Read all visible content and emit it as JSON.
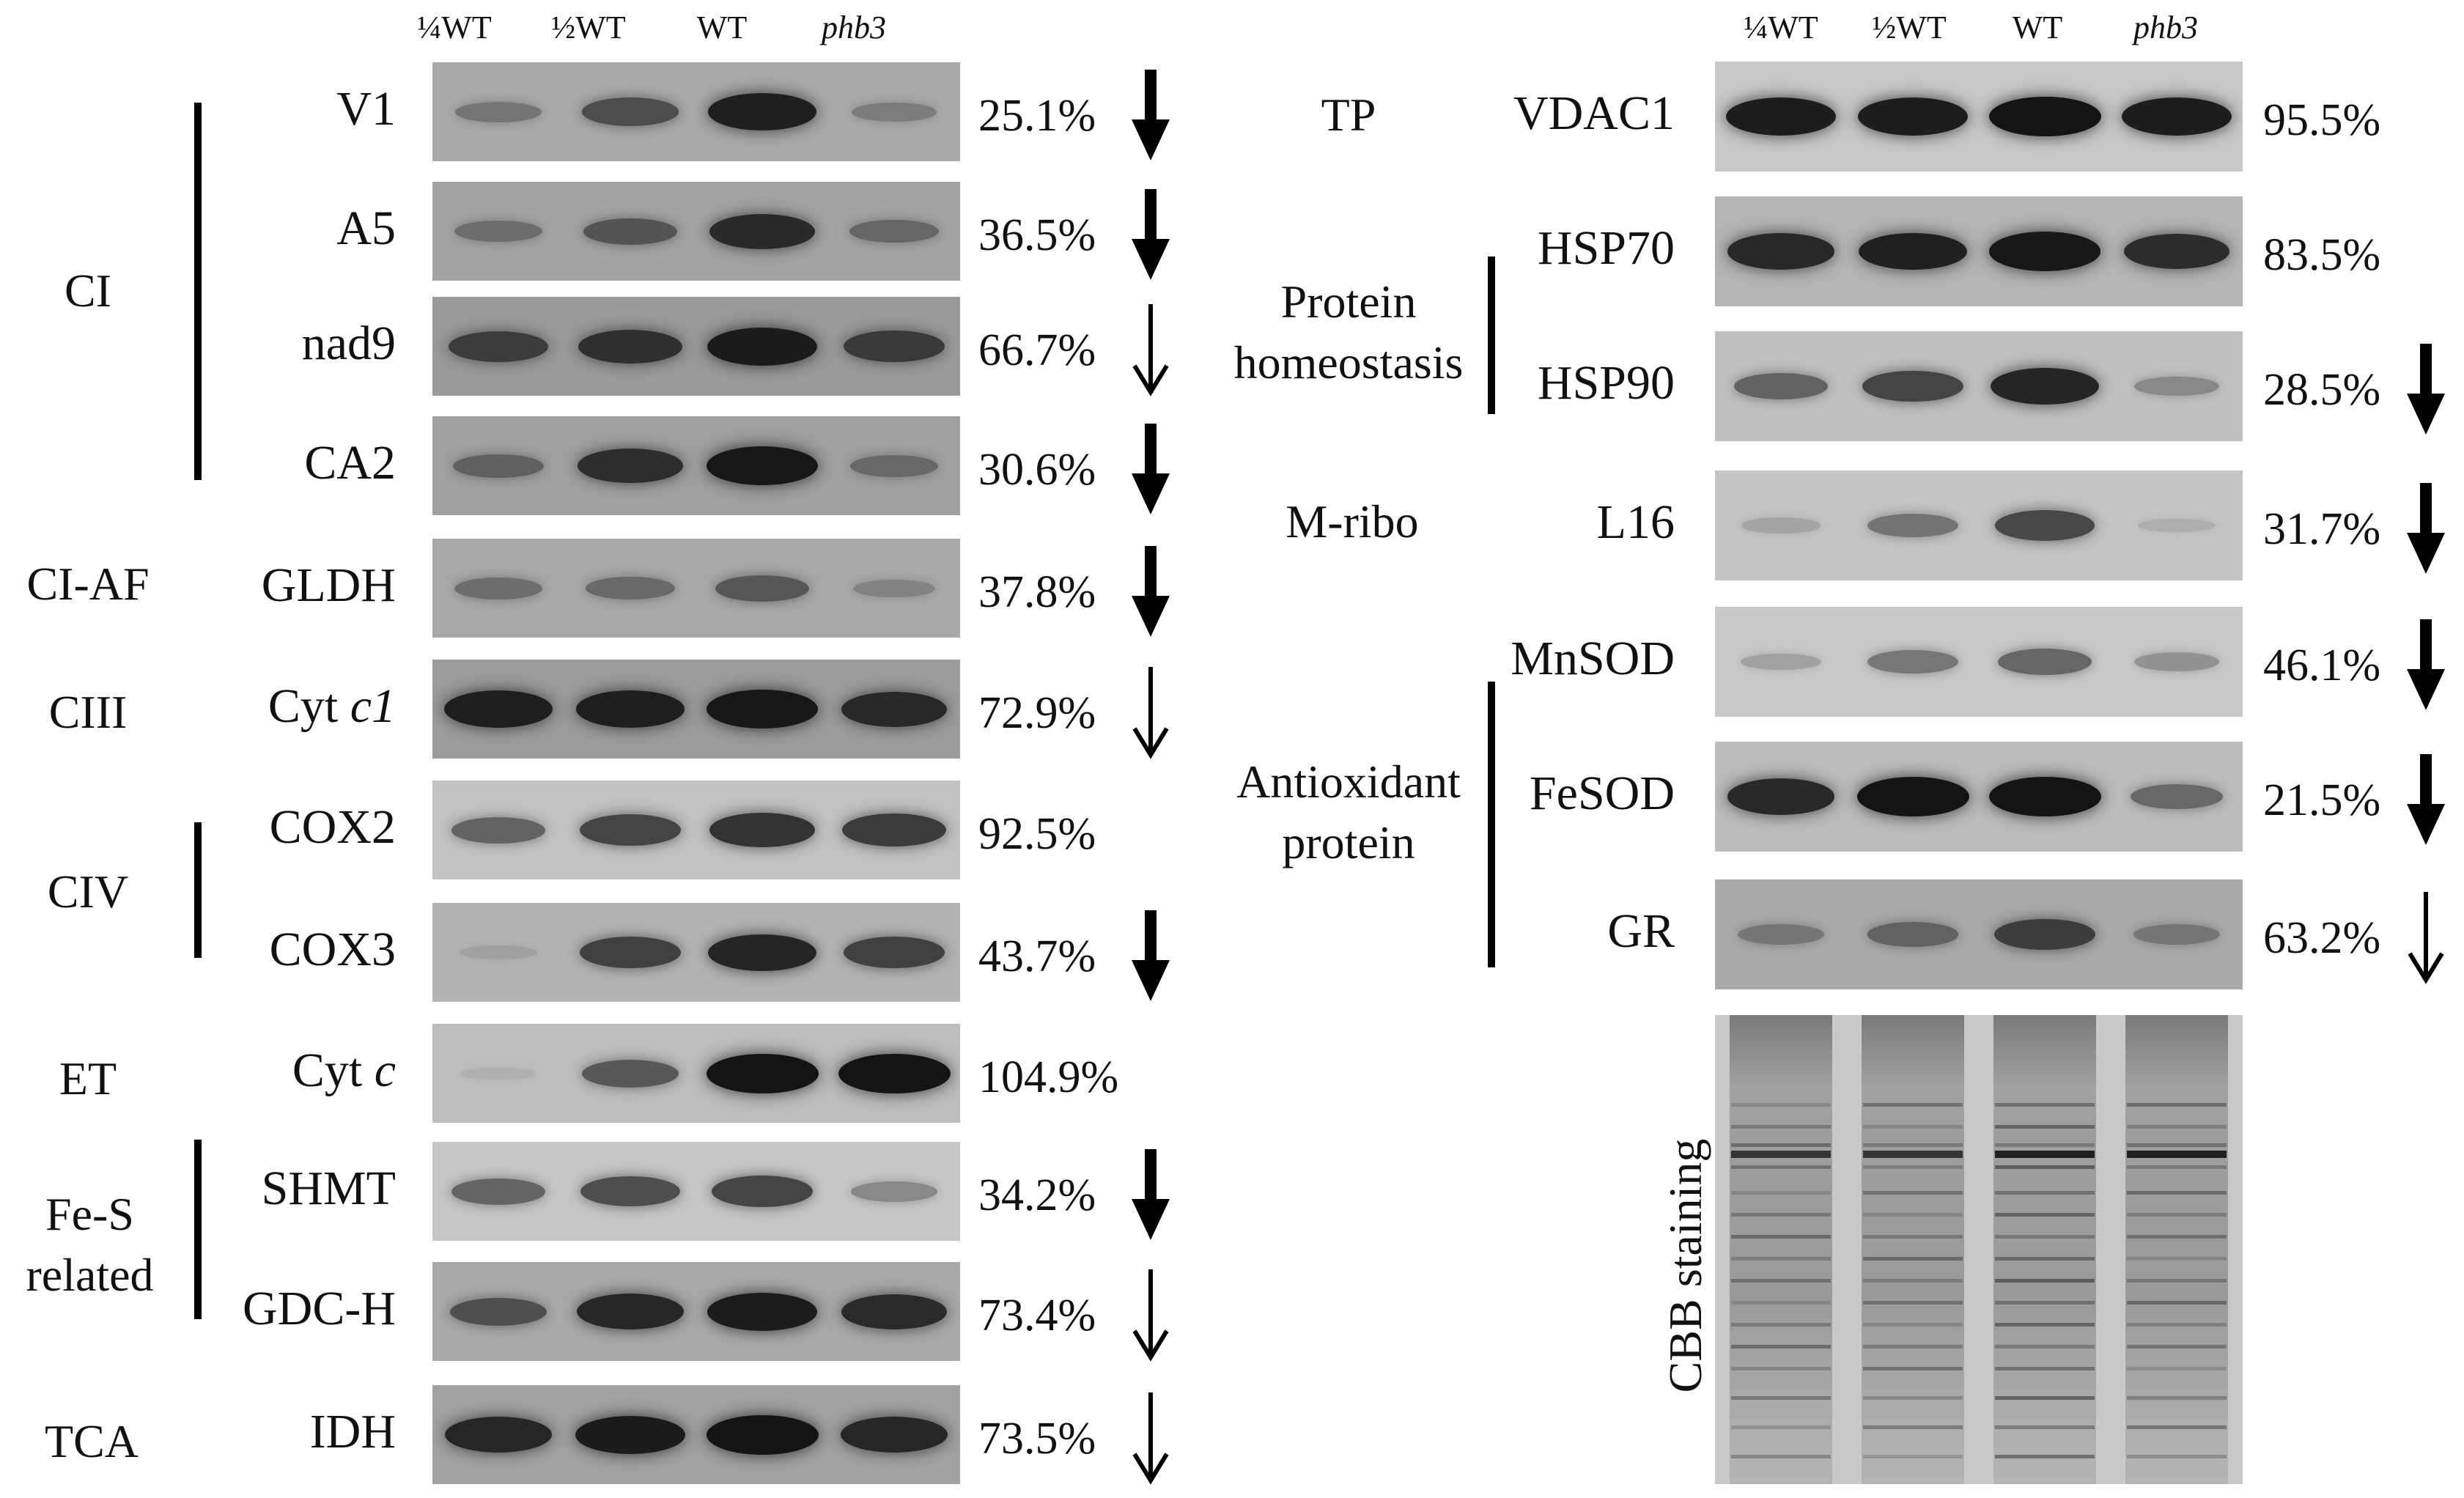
{
  "left_panel": {
    "lane_headers": [
      "¼WT",
      "½WT",
      "WT",
      "phb3"
    ],
    "rows": [
      {
        "protein": "V1",
        "percent": "25.1%",
        "arrow": "bold",
        "bands": [
          0.35,
          0.62,
          0.92,
          0.3
        ],
        "bg": "#a9a9a9"
      },
      {
        "protein": "A5",
        "percent": "36.5%",
        "arrow": "bold",
        "bands": [
          0.38,
          0.55,
          0.85,
          0.42
        ],
        "bg": "#a3a3a3"
      },
      {
        "protein": "nad9",
        "percent": "66.7%",
        "arrow": "thin",
        "bands": [
          0.7,
          0.8,
          0.95,
          0.72
        ],
        "bg": "#9a9a9a"
      },
      {
        "protein": "CA2",
        "percent": "30.6%",
        "arrow": "bold",
        "bands": [
          0.45,
          0.82,
          0.98,
          0.4
        ],
        "bg": "#a0a0a0"
      },
      {
        "protein": "GLDH",
        "percent": "37.8%",
        "arrow": "bold",
        "bands": [
          0.4,
          0.42,
          0.55,
          0.25
        ],
        "bg": "#a8a8a8"
      },
      {
        "protein": "Cyt c1",
        "protein_main": "Cyt ",
        "protein_ital": "c1",
        "percent": "72.9%",
        "arrow": "thin",
        "bands": [
          0.92,
          0.92,
          0.98,
          0.85
        ],
        "bg": "#9c9c9c"
      },
      {
        "protein": "COX2",
        "percent": "92.5%",
        "arrow": "none",
        "bands": [
          0.55,
          0.72,
          0.82,
          0.78
        ],
        "bg": "#c2c2c2"
      },
      {
        "protein": "COX3",
        "percent": "43.7%",
        "arrow": "bold",
        "bands": [
          0.12,
          0.72,
          0.9,
          0.72
        ],
        "bg": "#b4b4b4"
      },
      {
        "protein": "Cyt c",
        "protein_main": "Cyt ",
        "protein_ital": "c",
        "percent": "104.9%",
        "arrow": "none",
        "bands": [
          0.05,
          0.6,
          1.0,
          1.0
        ],
        "bg": "#bdbdbd"
      },
      {
        "protein": "SHMT",
        "percent": "34.2%",
        "arrow": "bold",
        "bands": [
          0.55,
          0.68,
          0.72,
          0.35
        ],
        "bg": "#c6c6c6"
      },
      {
        "protein": "GDC-H",
        "percent": "73.4%",
        "arrow": "thin",
        "bands": [
          0.6,
          0.88,
          0.95,
          0.85
        ],
        "bg": "#a9a9a9"
      },
      {
        "protein": "IDH",
        "percent": "73.5%",
        "arrow": "thin",
        "bands": [
          0.88,
          0.95,
          1.0,
          0.88
        ],
        "bg": "#a2a2a2"
      }
    ],
    "groups": [
      {
        "label": "CI"
      },
      {
        "label": "CI-AF"
      },
      {
        "label": "CIII"
      },
      {
        "label": "CIV"
      },
      {
        "label": "ET"
      },
      {
        "label": "Fe-S related",
        "line1": "Fe-S",
        "line2": "related"
      },
      {
        "label": "TCA"
      }
    ]
  },
  "right_panel": {
    "lane_headers": [
      "¼WT",
      "½WT",
      "WT",
      "phb3"
    ],
    "rows": [
      {
        "protein": "VDAC1",
        "percent": "95.5%",
        "arrow": "none",
        "bands": [
          0.95,
          0.95,
          1.0,
          0.95
        ],
        "bg": "#c8c8c8"
      },
      {
        "protein": "HSP70",
        "percent": "83.5%",
        "arrow": "none",
        "bands": [
          0.88,
          0.92,
          0.98,
          0.85
        ],
        "bg": "#b5b5b5"
      },
      {
        "protein": "HSP90",
        "percent": "28.5%",
        "arrow": "bold",
        "bands": [
          0.55,
          0.72,
          0.9,
          0.32
        ],
        "bg": "#c0c0c0"
      },
      {
        "protein": "L16",
        "percent": "31.7%",
        "arrow": "bold",
        "bands": [
          0.18,
          0.45,
          0.7,
          0.12
        ],
        "bg": "#c4c4c4"
      },
      {
        "protein": "MnSOD",
        "percent": "46.1%",
        "arrow": "bold",
        "bands": [
          0.22,
          0.45,
          0.55,
          0.3
        ],
        "bg": "#c9c9c9"
      },
      {
        "protein": "FeSOD",
        "percent": "21.5%",
        "arrow": "bold",
        "bands": [
          0.88,
          1.0,
          1.0,
          0.5
        ],
        "bg": "#bcbcbc"
      },
      {
        "protein": "GR",
        "percent": "63.2%",
        "arrow": "thin",
        "bands": [
          0.35,
          0.48,
          0.72,
          0.35
        ],
        "bg": "#a9a9a9"
      }
    ],
    "groups": [
      {
        "label": "TP"
      },
      {
        "label": "Protein homeostasis",
        "line1": "Protein",
        "line2": "homeostasis"
      },
      {
        "label": "M-ribo"
      },
      {
        "label": "Antioxidant protein",
        "line1": "Antioxidant",
        "line2": "protein"
      }
    ],
    "cbb_label": "CBB staining"
  },
  "colors": {
    "band": "#141414",
    "background": "#ffffff",
    "text": "#111111"
  }
}
